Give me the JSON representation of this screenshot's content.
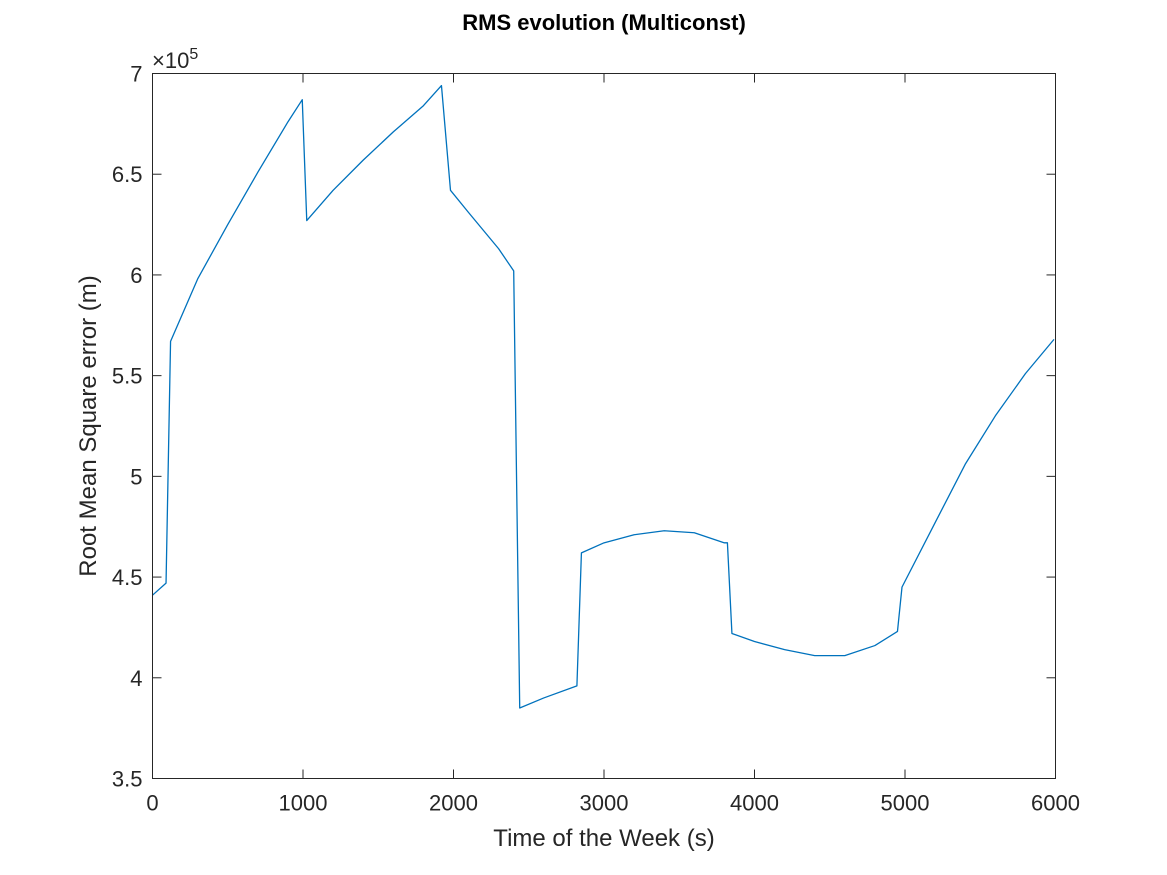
{
  "chart_data": {
    "type": "line",
    "title": "RMS evolution (Multiconst)",
    "xlabel": "Time of the Week (s)",
    "ylabel": "Root Mean Square error (m)",
    "y_exponent_label": "×10",
    "y_exponent_power": "5",
    "xlim": [
      0,
      6000
    ],
    "ylim": [
      3.5,
      7
    ],
    "xticks": [
      0,
      1000,
      2000,
      3000,
      4000,
      5000,
      6000
    ],
    "xtick_labels": [
      "0",
      "1000",
      "2000",
      "3000",
      "4000",
      "5000",
      "6000"
    ],
    "yticks": [
      3.5,
      4,
      4.5,
      5,
      5.5,
      6,
      6.5,
      7
    ],
    "ytick_labels": [
      "3.5",
      "4",
      "4.5",
      "5",
      "5.5",
      "6",
      "6.5",
      "7"
    ],
    "grid": false,
    "series": [
      {
        "color": "#0072BD",
        "x": [
          0,
          90,
          120,
          300,
          500,
          700,
          900,
          995,
          1025,
          1200,
          1400,
          1600,
          1800,
          1920,
          1980,
          2100,
          2300,
          2400,
          2440,
          2600,
          2820,
          2850,
          3000,
          3200,
          3400,
          3600,
          3800,
          3820,
          3850,
          4000,
          4200,
          4400,
          4600,
          4800,
          4950,
          4980,
          5200,
          5400,
          5600,
          5800,
          5990
        ],
        "y": [
          4.41,
          4.47,
          5.67,
          5.98,
          6.25,
          6.51,
          6.76,
          6.87,
          6.27,
          6.42,
          6.57,
          6.71,
          6.84,
          6.94,
          6.42,
          6.31,
          6.13,
          6.02,
          3.85,
          3.9,
          3.96,
          4.62,
          4.67,
          4.71,
          4.73,
          4.72,
          4.67,
          4.67,
          4.22,
          4.18,
          4.14,
          4.11,
          4.11,
          4.16,
          4.23,
          4.45,
          4.77,
          5.06,
          5.3,
          5.51,
          5.68
        ]
      }
    ]
  }
}
